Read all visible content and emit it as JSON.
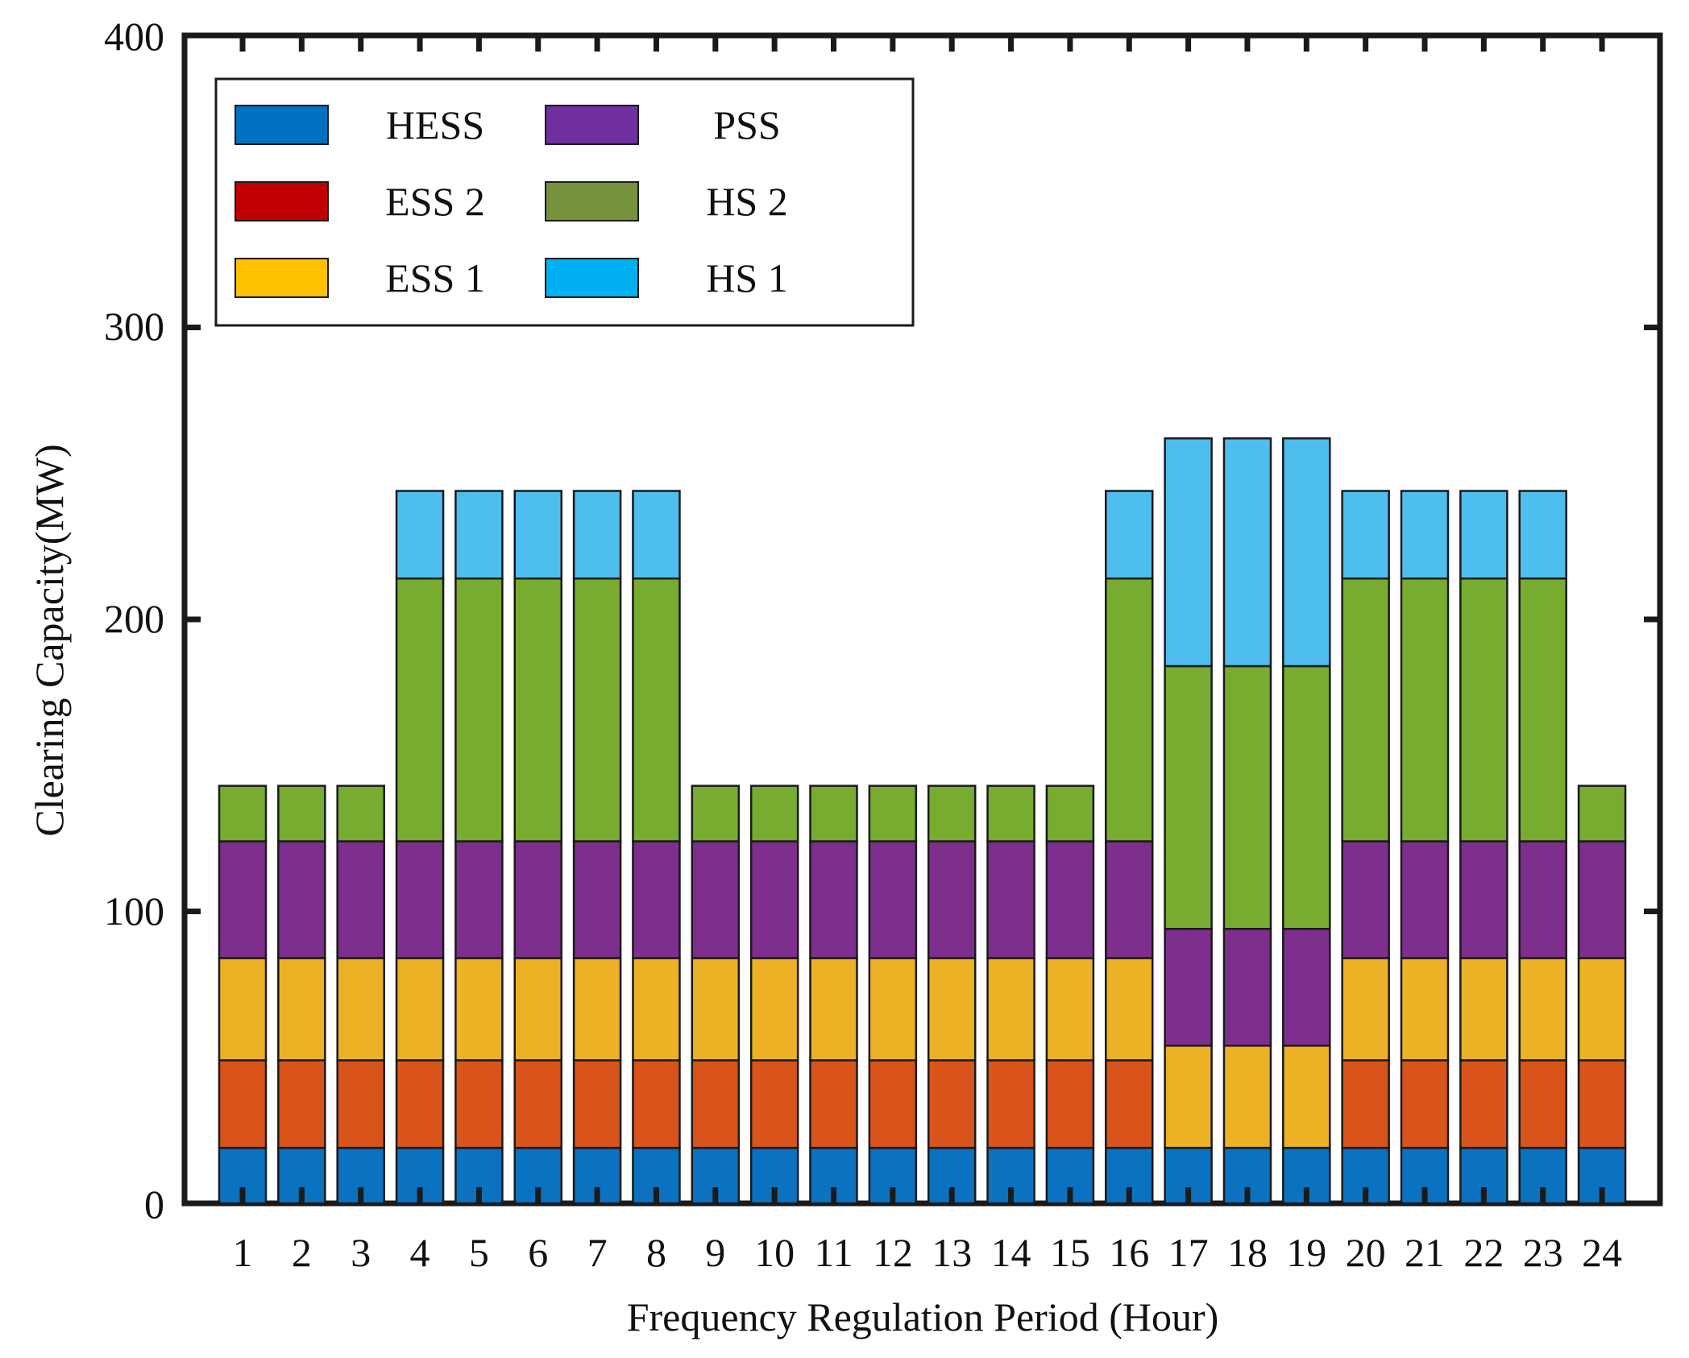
{
  "chart_data": {
    "type": "bar",
    "stacked": true,
    "title": "",
    "xlabel": "Frequency Regulation Period (Hour)",
    "ylabel": "Clearing Capacity(MW)",
    "ylim": [
      0,
      400
    ],
    "yticks": [
      "0",
      "100",
      "200",
      "300",
      "400"
    ],
    "grid": false,
    "legend_position": "top-left",
    "categories": [
      "1",
      "2",
      "3",
      "4",
      "5",
      "6",
      "7",
      "8",
      "9",
      "10",
      "11",
      "12",
      "13",
      "14",
      "15",
      "16",
      "17",
      "18",
      "19",
      "20",
      "21",
      "22",
      "23",
      "24"
    ],
    "series": [
      {
        "name": "HESS",
        "color": "#0a72c0",
        "values": [
          19,
          19,
          19,
          19,
          19,
          19,
          19,
          19,
          19,
          19,
          19,
          19,
          19,
          19,
          19,
          19,
          19,
          19,
          19,
          19,
          19,
          19,
          19,
          19
        ]
      },
      {
        "name": "ESS 2",
        "color": "#d8541a",
        "values": [
          30,
          30,
          30,
          30,
          30,
          30,
          30,
          30,
          30,
          30,
          30,
          30,
          30,
          30,
          30,
          30,
          0,
          0,
          0,
          30,
          30,
          30,
          30,
          30
        ]
      },
      {
        "name": "ESS 1",
        "color": "#ecb124",
        "values": [
          35,
          35,
          35,
          35,
          35,
          35,
          35,
          35,
          35,
          35,
          35,
          35,
          35,
          35,
          35,
          35,
          35,
          35,
          35,
          35,
          35,
          35,
          35,
          35
        ]
      },
      {
        "name": "PSS",
        "color": "#7e2e8d",
        "values": [
          40,
          40,
          40,
          40,
          40,
          40,
          40,
          40,
          40,
          40,
          40,
          40,
          40,
          40,
          40,
          40,
          40,
          40,
          40,
          40,
          40,
          40,
          40,
          40
        ]
      },
      {
        "name": "HS 2",
        "color": "#77ac30",
        "values": [
          19,
          19,
          19,
          90,
          90,
          90,
          90,
          90,
          19,
          19,
          19,
          19,
          19,
          19,
          19,
          90,
          90,
          90,
          90,
          90,
          90,
          90,
          90,
          19
        ]
      },
      {
        "name": "HS 1",
        "color": "#4dbeee",
        "values": [
          0,
          0,
          0,
          30,
          30,
          30,
          30,
          30,
          0,
          0,
          0,
          0,
          0,
          0,
          0,
          30,
          78,
          78,
          78,
          30,
          30,
          30,
          30,
          0
        ]
      }
    ],
    "legend": [
      {
        "name": "HESS",
        "color": "#0070c0"
      },
      {
        "name": "PSS",
        "color": "#7030a0"
      },
      {
        "name": "ESS 2",
        "color": "#c00000"
      },
      {
        "name": "HS 2",
        "color": "#76923c"
      },
      {
        "name": "ESS 1",
        "color": "#ffc000"
      },
      {
        "name": "HS 1",
        "color": "#00b0f0"
      }
    ]
  }
}
